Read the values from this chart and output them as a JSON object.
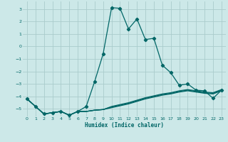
{
  "xlabel": "Humidex (Indice chaleur)",
  "xlim": [
    -0.5,
    23.5
  ],
  "ylim": [
    -5.6,
    3.6
  ],
  "xticks": [
    0,
    1,
    2,
    3,
    4,
    5,
    6,
    7,
    8,
    9,
    10,
    11,
    12,
    13,
    14,
    15,
    16,
    17,
    18,
    19,
    20,
    21,
    22,
    23
  ],
  "yticks": [
    -5,
    -4,
    -3,
    -2,
    -1,
    0,
    1,
    2,
    3
  ],
  "bg_color": "#cce8e8",
  "grid_color": "#aacccc",
  "line_color": "#006666",
  "series1_x": [
    0,
    1,
    2,
    3,
    4,
    5,
    6,
    7,
    8,
    9,
    10,
    11,
    12,
    13,
    14,
    15,
    16,
    17,
    18,
    19,
    20,
    21,
    22,
    23
  ],
  "series1_y": [
    -4.2,
    -4.8,
    -5.4,
    -5.3,
    -5.2,
    -5.5,
    -5.2,
    -4.8,
    -2.8,
    -0.6,
    3.1,
    3.05,
    1.4,
    2.2,
    0.55,
    0.65,
    -1.5,
    -2.1,
    -3.1,
    -3.0,
    -3.5,
    -3.55,
    -4.15,
    -3.5
  ],
  "series2_x": [
    0,
    1,
    2,
    3,
    4,
    5,
    6,
    7,
    8,
    9,
    10,
    11,
    12,
    13,
    14,
    15,
    16,
    17,
    18,
    19,
    20,
    21,
    22,
    23
  ],
  "series2_y": [
    -4.2,
    -4.8,
    -5.4,
    -5.3,
    -5.2,
    -5.5,
    -5.2,
    -5.2,
    -5.1,
    -5.05,
    -4.8,
    -4.65,
    -4.5,
    -4.3,
    -4.1,
    -3.95,
    -3.8,
    -3.7,
    -3.55,
    -3.45,
    -3.55,
    -3.65,
    -3.7,
    -3.45
  ],
  "series3_x": [
    0,
    1,
    2,
    3,
    4,
    5,
    6,
    7,
    8,
    9,
    10,
    11,
    12,
    13,
    14,
    15,
    16,
    17,
    18,
    19,
    20,
    21,
    22,
    23
  ],
  "series3_y": [
    -4.2,
    -4.8,
    -5.4,
    -5.3,
    -5.2,
    -5.5,
    -5.2,
    -5.2,
    -5.1,
    -5.05,
    -4.85,
    -4.7,
    -4.55,
    -4.35,
    -4.15,
    -4.0,
    -3.85,
    -3.75,
    -3.6,
    -3.5,
    -3.6,
    -3.7,
    -3.75,
    -3.5
  ],
  "series4_x": [
    0,
    1,
    2,
    3,
    4,
    5,
    6,
    7,
    8,
    9,
    10,
    11,
    12,
    13,
    14,
    15,
    16,
    17,
    18,
    19,
    20,
    21,
    22,
    23
  ],
  "series4_y": [
    -4.2,
    -4.8,
    -5.4,
    -5.3,
    -5.2,
    -5.5,
    -5.2,
    -5.2,
    -5.1,
    -5.05,
    -4.9,
    -4.75,
    -4.6,
    -4.4,
    -4.2,
    -4.05,
    -3.9,
    -3.8,
    -3.65,
    -3.55,
    -3.65,
    -3.75,
    -3.8,
    -3.55
  ]
}
